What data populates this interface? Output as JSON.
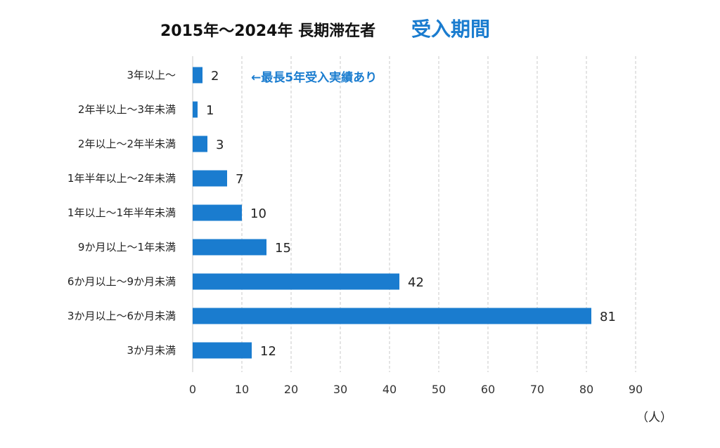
{
  "chart_data": {
    "type": "bar",
    "orientation": "horizontal",
    "title": "2015年～2024年 長期滞在者",
    "title_accent": "受入期間",
    "categories": [
      "3年以上～",
      "2年半以上～3年未満",
      "2年以上～2年半未満",
      "1年半年以上～2年未満",
      "1年以上～1年半年未満",
      "9か月以上～1年未満",
      "6か月以上～9か月未満",
      "3か月以上～6か月未満",
      "3か月未満"
    ],
    "values": [
      2,
      1,
      3,
      7,
      10,
      15,
      42,
      81,
      12
    ],
    "xlim": [
      0,
      90
    ],
    "xticks": [
      0,
      10,
      20,
      30,
      40,
      50,
      60,
      70,
      80,
      90
    ],
    "xlabel": "",
    "unit_label": "（人）",
    "grid": "vertical-dashed",
    "annotation": "←最長5年受入実績あり",
    "bar_color": "#1a7ccf",
    "accent_color": "#1a7ccf"
  }
}
